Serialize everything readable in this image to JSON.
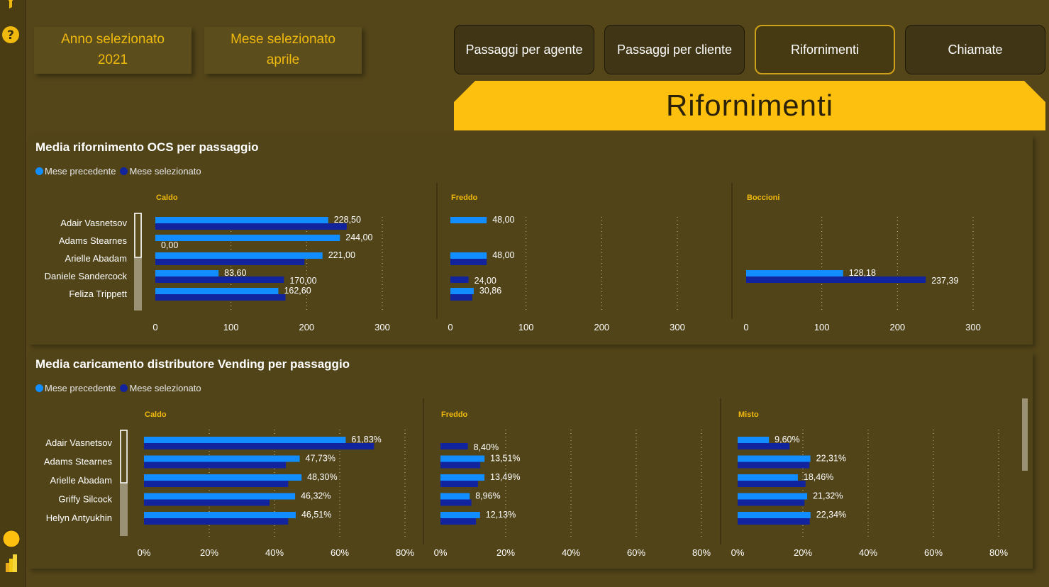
{
  "selectors": {
    "year_label": "Anno selezionato",
    "year_value": "2021",
    "month_label": "Mese selezionato",
    "month_value": "aprile"
  },
  "nav": [
    {
      "label": "Passaggi per agente",
      "active": false
    },
    {
      "label": "Passaggi per cliente",
      "active": false
    },
    {
      "label": "Rifornimenti",
      "active": true
    },
    {
      "label": "Chiamate",
      "active": false
    }
  ],
  "banner_title": "Rifornimenti",
  "colors": {
    "prev": "#118dff",
    "selected": "#12239e",
    "accent": "#f0b90e",
    "banner": "#fdc00f"
  },
  "icons": {
    "filter": "filter-icon",
    "help": "help-icon",
    "circle": "circle-icon",
    "powerbi": "powerbi-icon"
  },
  "legend": {
    "prev": "Mese precedente",
    "selected": "Mese selezionato"
  },
  "chart_data": [
    {
      "type": "bar",
      "orientation": "horizontal",
      "title": "Media rifornimento OCS per passaggio",
      "categories": [
        "Adair Vasnetsov",
        "Adams Stearnes",
        "Arielle Abadam",
        "Daniele Sandercock",
        "Feliza Trippett"
      ],
      "xlim": [
        0,
        300
      ],
      "ticks": [
        "0",
        "100",
        "200",
        "300"
      ],
      "facets": [
        {
          "name": "Caldo",
          "series": [
            {
              "name": "Mese precedente",
              "values": [
                228.5,
                244.0,
                221.0,
                83.6,
                162.6
              ],
              "labels": [
                "228,50",
                "244,00",
                "221,00",
                "83,60",
                "162,60"
              ]
            },
            {
              "name": "Mese selezionato",
              "values": [
                253,
                0,
                197,
                170,
                172
              ],
              "labels": [
                "",
                "0,00",
                "",
                "170,00",
                ""
              ]
            }
          ]
        },
        {
          "name": "Freddo",
          "series": [
            {
              "name": "Mese precedente",
              "values": [
                48,
                null,
                48,
                null,
                30.86
              ],
              "labels": [
                "48,00",
                "",
                "48,00",
                "",
                "30,86"
              ]
            },
            {
              "name": "Mese selezionato",
              "values": [
                null,
                null,
                48,
                24,
                29
              ],
              "labels": [
                "",
                "",
                "",
                "24,00",
                ""
              ]
            }
          ]
        },
        {
          "name": "Boccioni",
          "series": [
            {
              "name": "Mese precedente",
              "values": [
                null,
                null,
                null,
                128.18,
                null
              ],
              "labels": [
                "",
                "",
                "",
                "128,18",
                ""
              ]
            },
            {
              "name": "Mese selezionato",
              "values": [
                null,
                null,
                null,
                237.39,
                null
              ],
              "labels": [
                "",
                "",
                "",
                "237,39",
                ""
              ]
            }
          ]
        }
      ]
    },
    {
      "type": "bar",
      "orientation": "horizontal",
      "title": "Media caricamento distributore Vending per passaggio",
      "categories": [
        "Adair Vasnetsov",
        "Adams Stearnes",
        "Arielle Abadam",
        "Griffy Silcock",
        "Helyn Antyukhin"
      ],
      "xlim": [
        0,
        80
      ],
      "ticks": [
        "0%",
        "20%",
        "40%",
        "60%",
        "80%"
      ],
      "facets": [
        {
          "name": "Caldo",
          "series": [
            {
              "name": "Mese precedente",
              "values": [
                61.83,
                47.73,
                48.3,
                46.32,
                46.51
              ],
              "labels": [
                "61,83%",
                "47,73%",
                "48,30%",
                "46,32%",
                "46,51%"
              ]
            },
            {
              "name": "Mese selezionato",
              "values": [
                70.5,
                43.5,
                44.2,
                38.5,
                44.2
              ],
              "labels": [
                "",
                "",
                "",
                "",
                ""
              ]
            }
          ]
        },
        {
          "name": "Freddo",
          "series": [
            {
              "name": "Mese precedente",
              "values": [
                null,
                13.51,
                13.49,
                8.96,
                12.13
              ],
              "labels": [
                "",
                "13,51%",
                "13,49%",
                "8,96%",
                "12,13%"
              ]
            },
            {
              "name": "Mese selezionato",
              "values": [
                8.4,
                12.2,
                11.5,
                9.5,
                10.9
              ],
              "labels": [
                "8,40%",
                "",
                "",
                "",
                ""
              ]
            }
          ]
        },
        {
          "name": "Misto",
          "series": [
            {
              "name": "Mese precedente",
              "values": [
                9.6,
                22.31,
                18.46,
                21.32,
                22.34
              ],
              "labels": [
                "9,60%",
                "22,31%",
                "18,46%",
                "21,32%",
                "22,34%"
              ]
            },
            {
              "name": "Mese selezionato",
              "values": [
                15.9,
                22.0,
                20.8,
                20.5,
                22.1
              ],
              "labels": [
                "",
                "",
                "",
                "",
                ""
              ]
            }
          ]
        }
      ]
    }
  ]
}
